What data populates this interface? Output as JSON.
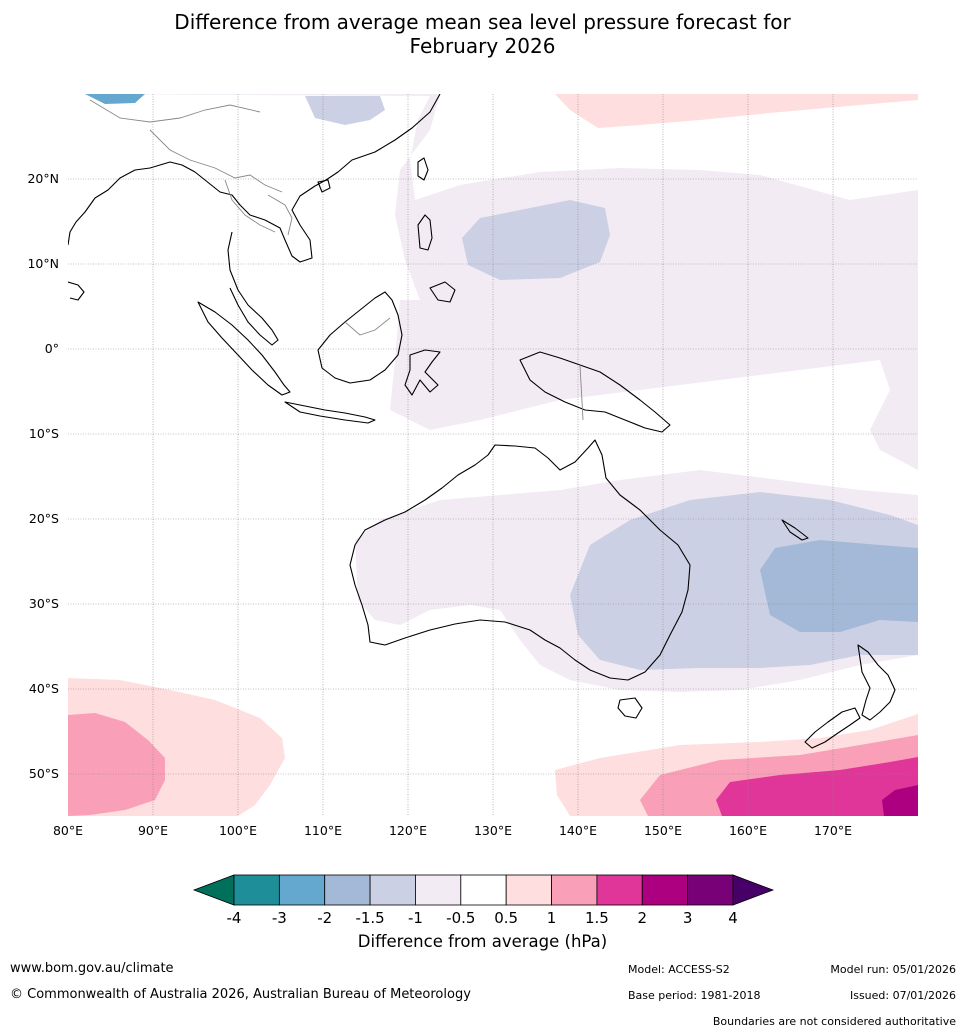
{
  "title": {
    "line1": "Difference from average mean sea level pressure forecast for",
    "line2": "February 2026"
  },
  "axes": {
    "lat_labels": [
      "20°N",
      "10°N",
      "0°",
      "10°S",
      "20°S",
      "30°S",
      "40°S",
      "50°S"
    ],
    "lon_labels": [
      "80°E",
      "90°E",
      "100°E",
      "110°E",
      "120°E",
      "130°E",
      "140°E",
      "150°E",
      "160°E",
      "170°E"
    ]
  },
  "colorbar": {
    "tick_labels": [
      "-4",
      "-3",
      "-2",
      "-1.5",
      "-1",
      "-0.5",
      "0.5",
      "1",
      "1.5",
      "2",
      "3",
      "4"
    ],
    "colors": [
      "#00705a",
      "#1e8f99",
      "#64a8d0",
      "#a3b9d7",
      "#ccd0e4",
      "#f2ebf4",
      "#ffffff",
      "#fedede",
      "#f9a0b8",
      "#e03699",
      "#ad0080",
      "#790178",
      "#470068"
    ],
    "title": "Difference from average (hPa)"
  },
  "footer": {
    "website": "www.bom.gov.au/climate",
    "copyright": "© Commonwealth of Australia 2026, Australian Bureau of Meteorology",
    "model": "Model: ACCESS-S2",
    "base_period": "Base period: 1981-2018",
    "model_run": "Model run: 05/01/2026",
    "issued": "Issued: 07/01/2026",
    "disclaimer": "Boundaries are not considered authoritative"
  }
}
